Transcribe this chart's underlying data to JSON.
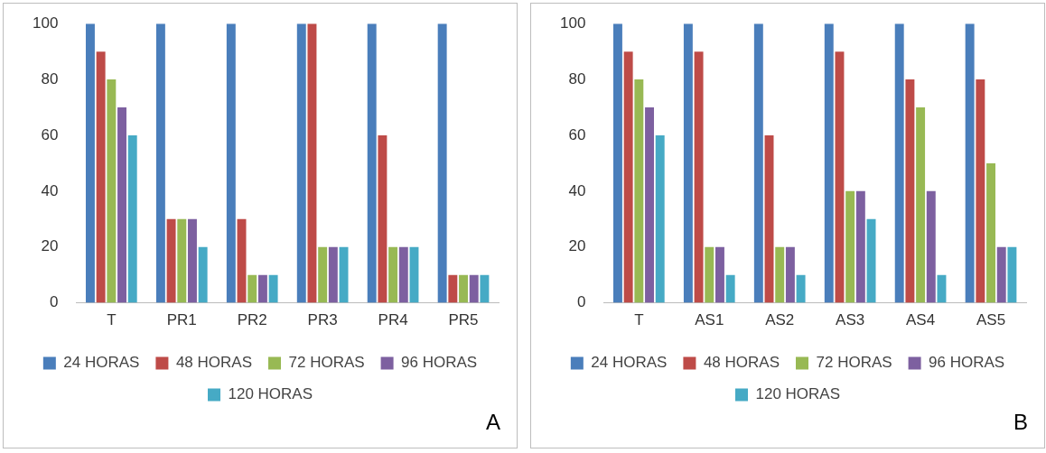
{
  "chart_data": [
    {
      "type": "bar",
      "categories": [
        "T",
        "PR1",
        "PR2",
        "PR3",
        "PR4",
        "PR5"
      ],
      "ylim": [
        0,
        100
      ],
      "yticks": [
        0,
        20,
        40,
        60,
        80,
        100
      ],
      "grid": false,
      "legend": "bottom",
      "annotations": [
        "A"
      ],
      "series": [
        {
          "name": "24 HORAS",
          "color": "#4a7ebb",
          "values": [
            100,
            100,
            100,
            100,
            100,
            100
          ]
        },
        {
          "name": "48 HORAS",
          "color": "#be4b48",
          "values": [
            90,
            30,
            30,
            100,
            60,
            10
          ]
        },
        {
          "name": "72 HORAS",
          "color": "#98b954",
          "values": [
            80,
            30,
            10,
            20,
            20,
            10
          ]
        },
        {
          "name": "96 HORAS",
          "color": "#7d60a0",
          "values": [
            70,
            30,
            10,
            20,
            20,
            10
          ]
        },
        {
          "name": "120 HORAS",
          "color": "#46aac5",
          "values": [
            60,
            20,
            10,
            20,
            20,
            10
          ]
        }
      ]
    },
    {
      "type": "bar",
      "categories": [
        "T",
        "AS1",
        "AS2",
        "AS3",
        "AS4",
        "AS5"
      ],
      "ylim": [
        0,
        100
      ],
      "yticks": [
        0,
        20,
        40,
        60,
        80,
        100
      ],
      "grid": false,
      "legend": "bottom",
      "annotations": [
        "B"
      ],
      "series": [
        {
          "name": "24 HORAS",
          "color": "#4a7ebb",
          "values": [
            100,
            100,
            100,
            100,
            100,
            100
          ]
        },
        {
          "name": "48 HORAS",
          "color": "#be4b48",
          "values": [
            90,
            90,
            60,
            90,
            80,
            80
          ]
        },
        {
          "name": "72 HORAS",
          "color": "#98b954",
          "values": [
            80,
            20,
            20,
            40,
            70,
            50
          ]
        },
        {
          "name": "96 HORAS",
          "color": "#7d60a0",
          "values": [
            70,
            20,
            20,
            40,
            40,
            20
          ]
        },
        {
          "name": "120 HORAS",
          "color": "#46aac5",
          "values": [
            60,
            10,
            10,
            30,
            10,
            20
          ]
        }
      ]
    }
  ]
}
